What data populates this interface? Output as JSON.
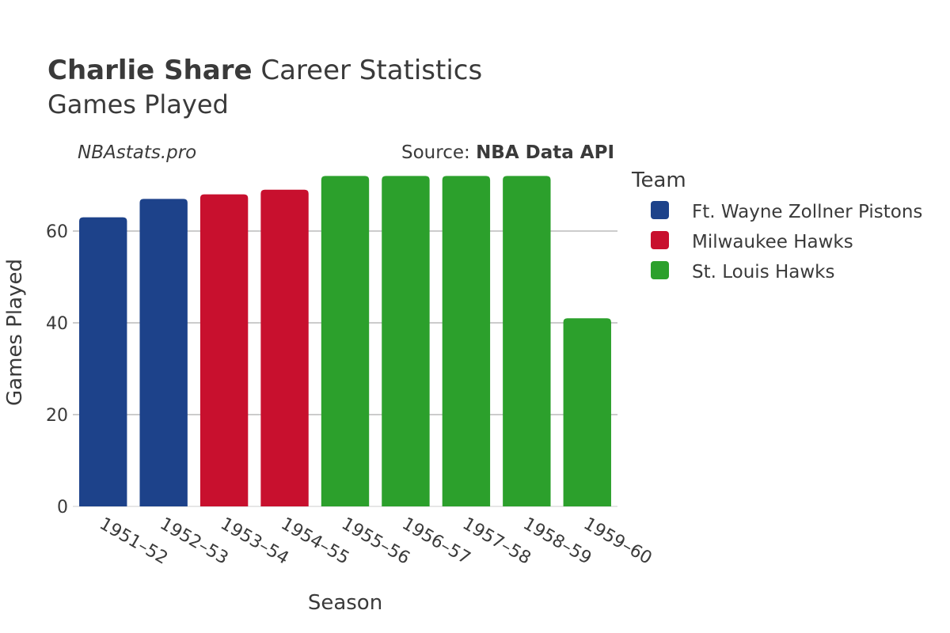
{
  "header": {
    "title_name": "Charlie Share",
    "title_rest": " Career Statistics",
    "subtitle": "Games Played",
    "watermark": "NBAstats.pro",
    "source_prefix": "Source: ",
    "source_name": "NBA Data API"
  },
  "legend": {
    "title": "Team",
    "placement": "right"
  },
  "chart_data": {
    "type": "bar",
    "xlabel": "Season",
    "ylabel": "Games Played",
    "ylim": [
      0,
      75
    ],
    "yticks": [
      0,
      20,
      40,
      60
    ],
    "grid": true,
    "categories": [
      "1951–52",
      "1952–53",
      "1953–54",
      "1954–55",
      "1955–56",
      "1956–57",
      "1957–58",
      "1958–59",
      "1959–60"
    ],
    "values": [
      63,
      67,
      68,
      69,
      72,
      72,
      72,
      72,
      41
    ],
    "bar_team": [
      0,
      0,
      1,
      1,
      2,
      2,
      2,
      2,
      2
    ],
    "series": [
      {
        "name": "Ft. Wayne Zollner Pistons",
        "color": "#1d428a"
      },
      {
        "name": "Milwaukee Hawks",
        "color": "#c8102e"
      },
      {
        "name": "St. Louis Hawks",
        "color": "#2ca02c"
      }
    ]
  }
}
